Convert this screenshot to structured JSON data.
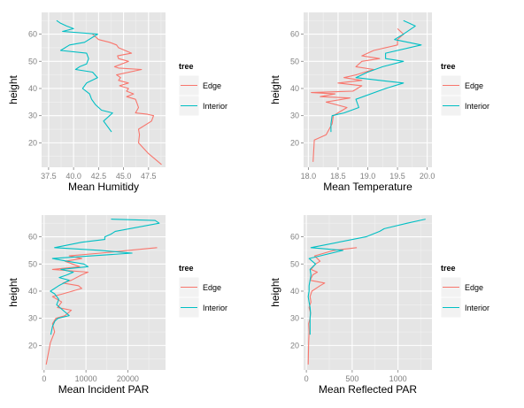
{
  "legend": {
    "title": "tree",
    "entries": [
      {
        "label": "Edge",
        "color": "#F8766D"
      },
      {
        "label": "Interior",
        "color": "#00BFC4"
      }
    ]
  },
  "chart_data": [
    {
      "type": "line",
      "xlabel": "Mean Humitidy",
      "ylabel": "height",
      "xlim": [
        36.8,
        49.2
      ],
      "ylim": [
        11,
        68
      ],
      "xticks": [
        37.5,
        40.0,
        42.5,
        45.0,
        47.5
      ],
      "xtick_labels": [
        "37.5",
        "40.0",
        "42.5",
        "45.0",
        "47.5"
      ],
      "yticks": [
        20,
        30,
        40,
        50,
        60
      ],
      "ytick_labels": [
        "20",
        "30",
        "40",
        "50",
        "60"
      ],
      "grid": true,
      "legend_position": "right",
      "series": [
        {
          "name": "Edge",
          "color": "#F8766D",
          "points": [
            [
              48.8,
              12
            ],
            [
              47.5,
              16
            ],
            [
              46.5,
              20
            ],
            [
              46.6,
              23
            ],
            [
              46.5,
              25
            ],
            [
              47.8,
              28
            ],
            [
              48,
              30
            ],
            [
              47.4,
              30.5
            ],
            [
              46.2,
              31
            ],
            [
              46.5,
              33
            ],
            [
              46.3,
              35
            ],
            [
              46.2,
              36
            ],
            [
              45.3,
              37
            ],
            [
              46,
              38
            ],
            [
              45.3,
              39
            ],
            [
              45.5,
              40
            ],
            [
              44.6,
              41
            ],
            [
              45.5,
              42
            ],
            [
              44.5,
              43
            ],
            [
              44.7,
              44
            ],
            [
              44.3,
              45
            ],
            [
              46.8,
              47
            ],
            [
              44.5,
              47.5
            ],
            [
              44.1,
              48
            ],
            [
              45.5,
              50
            ],
            [
              44.5,
              51
            ],
            [
              44.4,
              52
            ],
            [
              45.8,
              53
            ],
            [
              44.5,
              55
            ],
            [
              44.3,
              56
            ],
            [
              43.6,
              57
            ],
            [
              42.5,
              58
            ],
            [
              41.9,
              60
            ]
          ]
        },
        {
          "name": "Interior",
          "color": "#00BFC4",
          "points": [
            [
              43.8,
              24
            ],
            [
              43,
              28
            ],
            [
              43.9,
              31
            ],
            [
              42.8,
              32
            ],
            [
              42.2,
              34
            ],
            [
              41.8,
              36
            ],
            [
              41.6,
              38
            ],
            [
              40.9,
              40
            ],
            [
              41.3,
              42
            ],
            [
              42.4,
              44
            ],
            [
              41.9,
              46
            ],
            [
              40.2,
              47
            ],
            [
              40.6,
              48
            ],
            [
              41.3,
              49
            ],
            [
              41.5,
              51
            ],
            [
              41.3,
              53
            ],
            [
              38.7,
              54
            ],
            [
              39.6,
              56
            ],
            [
              41.1,
              57
            ],
            [
              42.4,
              60
            ],
            [
              38.9,
              61
            ],
            [
              40,
              62
            ],
            [
              39.3,
              63
            ],
            [
              38.7,
              64
            ],
            [
              38.3,
              65
            ]
          ]
        }
      ]
    },
    {
      "type": "line",
      "xlabel": "Mean Temperature",
      "ylabel": "height",
      "xlim": [
        17.92,
        20.08
      ],
      "ylim": [
        11,
        68
      ],
      "xticks": [
        18.0,
        18.5,
        19.0,
        19.5,
        20.0
      ],
      "xtick_labels": [
        "18.0",
        "18.5",
        "19.0",
        "19.5",
        "20.0"
      ],
      "yticks": [
        20,
        30,
        40,
        50,
        60
      ],
      "ytick_labels": [
        "20",
        "30",
        "40",
        "50",
        "60"
      ],
      "grid": true,
      "legend_position": "right",
      "series": [
        {
          "name": "Edge",
          "color": "#F8766D",
          "points": [
            [
              18.08,
              13
            ],
            [
              18.1,
              21
            ],
            [
              18.3,
              23
            ],
            [
              18.4,
              27
            ],
            [
              18.42,
              30
            ],
            [
              18.65,
              33
            ],
            [
              18.3,
              35
            ],
            [
              18.7,
              36.5
            ],
            [
              18.2,
              37
            ],
            [
              18.45,
              38
            ],
            [
              18.05,
              38.5
            ],
            [
              18.75,
              39
            ],
            [
              18.9,
              41
            ],
            [
              18.5,
              42
            ],
            [
              18.9,
              43
            ],
            [
              18.6,
              44
            ],
            [
              18.8,
              45
            ],
            [
              18.95,
              46
            ],
            [
              19.1,
              47
            ],
            [
              18.8,
              48
            ],
            [
              18.9,
              50
            ],
            [
              19.2,
              51
            ],
            [
              18.9,
              52
            ],
            [
              19.1,
              54
            ],
            [
              19.5,
              56
            ],
            [
              19.5,
              58
            ],
            [
              19.6,
              60
            ],
            [
              19.5,
              62
            ]
          ]
        },
        {
          "name": "Interior",
          "color": "#00BFC4",
          "points": [
            [
              18.38,
              24
            ],
            [
              18.38,
              27
            ],
            [
              18.4,
              30
            ],
            [
              18.6,
              31
            ],
            [
              18.85,
              33
            ],
            [
              18.8,
              36
            ],
            [
              19.3,
              40
            ],
            [
              19.6,
              42
            ],
            [
              19.2,
              43
            ],
            [
              18.8,
              44
            ],
            [
              19.0,
              46
            ],
            [
              19.25,
              48
            ],
            [
              19.6,
              50
            ],
            [
              19.3,
              51
            ],
            [
              19.3,
              53
            ],
            [
              19.9,
              56
            ],
            [
              19.45,
              58
            ],
            [
              19.6,
              60
            ],
            [
              19.8,
              63
            ],
            [
              19.7,
              64
            ],
            [
              19.6,
              65
            ]
          ]
        }
      ]
    },
    {
      "type": "line",
      "xlabel": "Mean Incident PAR",
      "ylabel": "height",
      "xlim": [
        -600,
        29000
      ],
      "ylim": [
        11,
        68
      ],
      "xticks": [
        0,
        10000,
        20000
      ],
      "xtick_labels": [
        "0",
        "10000",
        "20000"
      ],
      "yticks": [
        20,
        30,
        40,
        50,
        60
      ],
      "ytick_labels": [
        "20",
        "30",
        "40",
        "50",
        "60"
      ],
      "grid": true,
      "legend_position": "right",
      "series": [
        {
          "name": "Edge",
          "color": "#F8766D",
          "points": [
            [
              500,
              13
            ],
            [
              1500,
              21
            ],
            [
              2500,
              25
            ],
            [
              2000,
              28
            ],
            [
              2800,
              30
            ],
            [
              5000,
              31
            ],
            [
              6500,
              33
            ],
            [
              3200,
              34
            ],
            [
              4200,
              36
            ],
            [
              2000,
              38
            ],
            [
              4500,
              39
            ],
            [
              9000,
              41
            ],
            [
              8200,
              42
            ],
            [
              4500,
              43
            ],
            [
              6500,
              44
            ],
            [
              9000,
              46
            ],
            [
              10500,
              47
            ],
            [
              2000,
              48
            ],
            [
              8500,
              49
            ],
            [
              5000,
              51
            ],
            [
              9000,
              52
            ],
            [
              6000,
              53
            ],
            [
              13500,
              54
            ],
            [
              27000,
              56
            ]
          ]
        },
        {
          "name": "Interior",
          "color": "#00BFC4",
          "points": [
            [
              1600,
              24
            ],
            [
              2000,
              27
            ],
            [
              2600,
              29
            ],
            [
              3300,
              30
            ],
            [
              6000,
              31
            ],
            [
              4500,
              33
            ],
            [
              3000,
              35
            ],
            [
              3500,
              37
            ],
            [
              2500,
              39
            ],
            [
              1500,
              40
            ],
            [
              3500,
              42
            ],
            [
              6000,
              44
            ],
            [
              3600,
              45
            ],
            [
              5500,
              46
            ],
            [
              7000,
              47
            ],
            [
              4000,
              48
            ],
            [
              10500,
              49
            ],
            [
              9500,
              50
            ],
            [
              5500,
              51
            ],
            [
              2000,
              52
            ],
            [
              21000,
              54
            ],
            [
              13500,
              55
            ],
            [
              2500,
              56
            ],
            [
              9000,
              58
            ],
            [
              14500,
              59
            ],
            [
              14500,
              60
            ],
            [
              16000,
              61
            ],
            [
              17000,
              62
            ],
            [
              27500,
              65
            ],
            [
              26500,
              66
            ],
            [
              16000,
              66.5
            ]
          ]
        }
      ]
    },
    {
      "type": "line",
      "xlabel": "Mean Reflected PAR",
      "ylabel": "height",
      "xlim": [
        -30,
        1370
      ],
      "ylim": [
        11,
        68
      ],
      "xticks": [
        0,
        500,
        1000
      ],
      "xtick_labels": [
        "0",
        "500",
        "1000"
      ],
      "yticks": [
        20,
        30,
        40,
        50,
        60
      ],
      "ytick_labels": [
        "20",
        "30",
        "40",
        "50",
        "60"
      ],
      "grid": true,
      "legend_position": "right",
      "series": [
        {
          "name": "Edge",
          "color": "#F8766D",
          "points": [
            [
              20,
              13
            ],
            [
              25,
              21
            ],
            [
              30,
              25
            ],
            [
              25,
              28
            ],
            [
              40,
              30
            ],
            [
              45,
              32
            ],
            [
              30,
              34
            ],
            [
              50,
              36
            ],
            [
              40,
              38
            ],
            [
              60,
              40
            ],
            [
              150,
              42
            ],
            [
              200,
              43
            ],
            [
              40,
              44
            ],
            [
              70,
              46
            ],
            [
              120,
              47
            ],
            [
              50,
              48
            ],
            [
              100,
              50
            ],
            [
              150,
              51
            ],
            [
              90,
              53
            ],
            [
              300,
              55
            ],
            [
              550,
              56
            ]
          ]
        },
        {
          "name": "Interior",
          "color": "#00BFC4",
          "points": [
            [
              40,
              24
            ],
            [
              40,
              27
            ],
            [
              40,
              30
            ],
            [
              45,
              32
            ],
            [
              40,
              34
            ],
            [
              30,
              36
            ],
            [
              20,
              38
            ],
            [
              30,
              40
            ],
            [
              30,
              42
            ],
            [
              40,
              44
            ],
            [
              50,
              46
            ],
            [
              40,
              48
            ],
            [
              100,
              50
            ],
            [
              30,
              52
            ],
            [
              400,
              55
            ],
            [
              50,
              56
            ],
            [
              650,
              60
            ],
            [
              800,
              62
            ],
            [
              850,
              63
            ],
            [
              1100,
              65
            ],
            [
              1300,
              66.5
            ]
          ]
        }
      ]
    }
  ]
}
